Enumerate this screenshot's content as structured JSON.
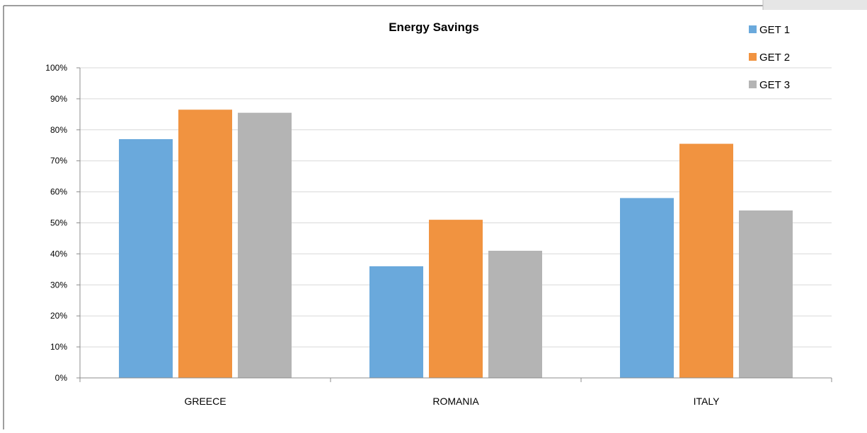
{
  "chart_data": {
    "type": "bar",
    "title": "Energy Savings",
    "xlabel": "",
    "ylabel": "",
    "categories": [
      "GREECE",
      "ROMANIA",
      "ITALY"
    ],
    "ylim": [
      0,
      100
    ],
    "yticks": [
      "0%",
      "10%",
      "20%",
      "30%",
      "40%",
      "50%",
      "60%",
      "70%",
      "80%",
      "90%",
      "100%"
    ],
    "y_unit": "%",
    "grid": true,
    "legend": "top-right",
    "series": [
      {
        "name": "GET 1",
        "color": "#6aa9dc",
        "values": [
          77,
          36,
          58
        ]
      },
      {
        "name": "GET 2",
        "color": "#f19340",
        "values": [
          86.5,
          51,
          75.5
        ]
      },
      {
        "name": "GET 3",
        "color": "#b4b4b4",
        "values": [
          85.5,
          41,
          54
        ]
      }
    ]
  }
}
